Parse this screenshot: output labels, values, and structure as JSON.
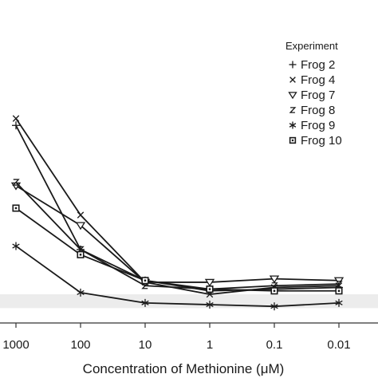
{
  "chart_data": {
    "type": "line",
    "xlabel": "Concentration of Methionine (μM)",
    "categories": [
      "1000",
      "100",
      "10",
      "1",
      "0.1",
      "0.01"
    ],
    "legend": {
      "title": "Experiment",
      "placement": "top-right"
    },
    "reference_band": {
      "color": "#ececec"
    },
    "line_color": "#1a1a1a",
    "series": [
      {
        "name": "Frog 2",
        "marker": "plus",
        "values": [
          120,
          48,
          30,
          24,
          25,
          26
        ]
      },
      {
        "name": "Frog 4",
        "marker": "x",
        "values": [
          124,
          68,
          29,
          22,
          26,
          27
        ]
      },
      {
        "name": "Frog 7",
        "marker": "triangle-down",
        "values": [
          85,
          62,
          29,
          29,
          31,
          30
        ]
      },
      {
        "name": "Frog 8",
        "marker": "z",
        "values": [
          87,
          48,
          27,
          25,
          27,
          28
        ]
      },
      {
        "name": "Frog 9",
        "marker": "asterisk",
        "values": [
          50,
          23,
          17,
          16,
          15,
          17
        ]
      },
      {
        "name": "Frog 10",
        "marker": "square",
        "values": [
          72,
          45,
          30,
          25,
          24,
          24
        ]
      }
    ],
    "ylim": [
      10,
      165
    ],
    "band_ylim": [
      14,
      22
    ],
    "grid": false
  }
}
